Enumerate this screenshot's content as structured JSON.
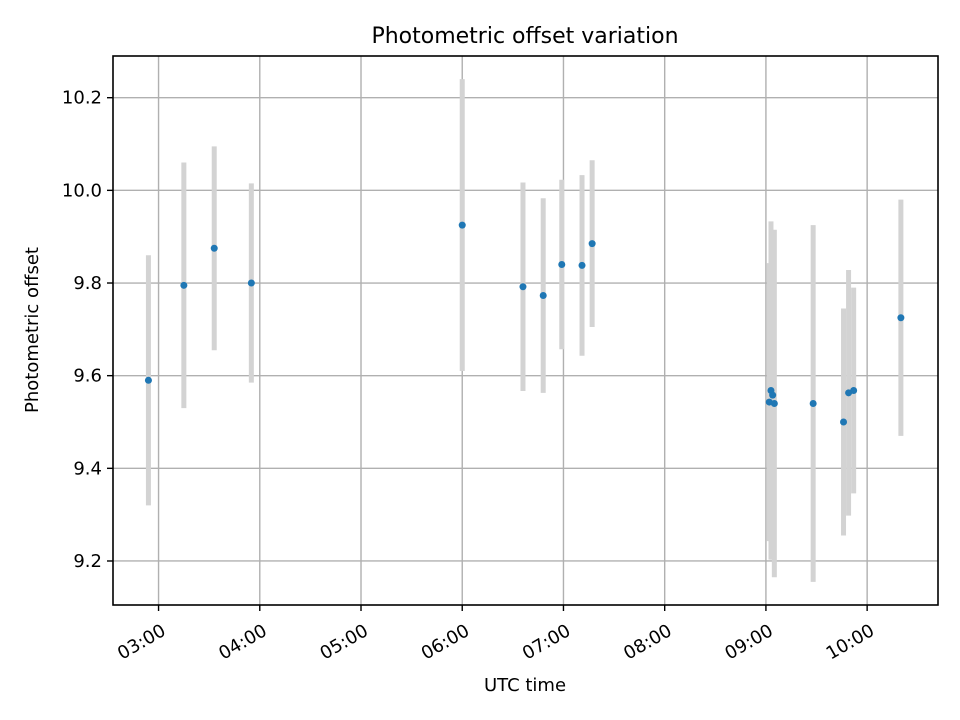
{
  "chart_data": {
    "type": "scatter",
    "title": "Photometric offset variation",
    "xlabel": "UTC time",
    "ylabel": "Photometric offset",
    "xlim": [
      "02:33",
      "10:42"
    ],
    "ylim": [
      9.105,
      10.29
    ],
    "x_ticks": [
      "03:00",
      "04:00",
      "05:00",
      "06:00",
      "07:00",
      "08:00",
      "09:00",
      "10:00"
    ],
    "y_ticks": [
      9.2,
      9.4,
      9.6,
      9.8,
      10.0,
      10.2
    ],
    "grid": true,
    "marker_color": "#1f77b4",
    "errorbar_color": "#d3d3d3",
    "points": [
      {
        "time": "02:54",
        "y": 9.59,
        "err": 0.27
      },
      {
        "time": "03:15",
        "y": 9.795,
        "err": 0.265
      },
      {
        "time": "03:33",
        "y": 9.875,
        "err": 0.22
      },
      {
        "time": "03:55",
        "y": 9.8,
        "err": 0.215
      },
      {
        "time": "06:00",
        "y": 9.925,
        "err": 0.315
      },
      {
        "time": "06:36",
        "y": 9.792,
        "err": 0.225
      },
      {
        "time": "06:48",
        "y": 9.773,
        "err": 0.21
      },
      {
        "time": "06:59",
        "y": 9.84,
        "err": 0.183
      },
      {
        "time": "07:11",
        "y": 9.838,
        "err": 0.195
      },
      {
        "time": "07:17",
        "y": 9.885,
        "err": 0.18
      },
      {
        "time": "09:02",
        "y": 9.543,
        "err": 0.3
      },
      {
        "time": "09:03",
        "y": 9.568,
        "err": 0.365
      },
      {
        "time": "09:04",
        "y": 9.558,
        "err": 0.355
      },
      {
        "time": "09:05",
        "y": 9.54,
        "err": 0.375
      },
      {
        "time": "09:28",
        "y": 9.54,
        "err": 0.385
      },
      {
        "time": "09:46",
        "y": 9.5,
        "err": 0.245
      },
      {
        "time": "09:49",
        "y": 9.563,
        "err": 0.265
      },
      {
        "time": "09:52",
        "y": 9.568,
        "err": 0.222
      },
      {
        "time": "10:20",
        "y": 9.725,
        "err": 0.255
      }
    ]
  }
}
